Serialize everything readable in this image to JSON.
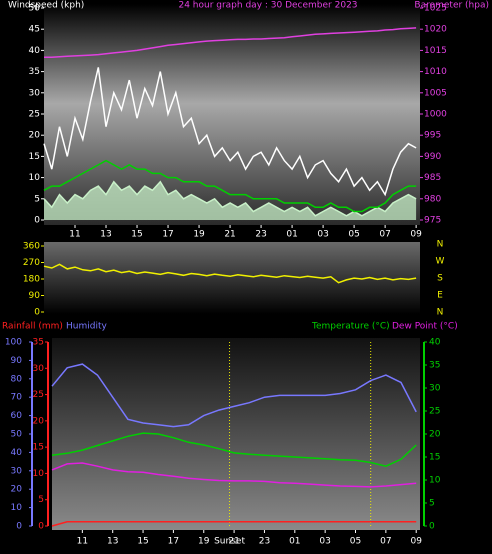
{
  "chart_data": [
    {
      "type": "line",
      "title": "24 hour graph day : 30 December 2023",
      "ylabel": "Windspeed (kph)",
      "y2label": "Barometer (hpa)",
      "x": [
        0,
        0.5,
        1,
        1.5,
        2,
        2.5,
        3,
        3.5,
        4,
        4.5,
        5,
        5.5,
        6,
        6.5,
        7,
        7.5,
        8,
        8.5,
        9,
        9.5,
        10,
        10.5,
        11,
        11.5,
        12,
        12.5,
        13,
        13.5,
        14,
        14.5,
        15,
        15.5,
        16,
        16.5,
        17,
        17.5,
        18,
        18.5,
        19,
        19.5,
        20,
        20.5,
        21,
        21.5,
        22,
        22.5,
        23,
        23.5,
        24
      ],
      "xlim": [
        0,
        24.25
      ],
      "xticks": [
        {
          "value": 2,
          "label": "11"
        },
        {
          "value": 4,
          "label": "13"
        },
        {
          "value": 6,
          "label": "15"
        },
        {
          "value": 8,
          "label": "17"
        },
        {
          "value": 10,
          "label": "19"
        },
        {
          "value": 12,
          "label": "21"
        },
        {
          "value": 14,
          "label": "23"
        },
        {
          "value": 16,
          "label": "01"
        },
        {
          "value": 18,
          "label": "03"
        },
        {
          "value": 20,
          "label": "05"
        },
        {
          "value": 22,
          "label": "07"
        },
        {
          "value": 24,
          "label": "09"
        }
      ],
      "ylim": [
        0,
        50
      ],
      "yticks": [
        0,
        5,
        10,
        15,
        20,
        25,
        30,
        35,
        40,
        45,
        50
      ],
      "y2lim": [
        975,
        1025
      ],
      "y2ticks": [
        975,
        980,
        985,
        990,
        995,
        1000,
        1005,
        1010,
        1015,
        1020,
        1025
      ],
      "series": [
        {
          "color": "#ffffff",
          "axis": "y",
          "values": [
            18,
            12,
            22,
            15,
            24,
            19,
            28,
            36,
            22,
            30,
            26,
            33,
            24,
            31,
            27,
            35,
            25,
            30,
            22,
            24,
            18,
            20,
            15,
            17,
            14,
            16,
            12,
            15,
            16,
            13,
            17,
            14,
            12,
            15,
            10,
            13,
            14,
            11,
            9,
            12,
            8,
            10,
            7,
            9,
            6,
            12,
            16,
            18,
            17
          ]
        },
        {
          "color": "#c8f0c8",
          "axis": "y",
          "area": true,
          "values": [
            5,
            3,
            6,
            4,
            6,
            5,
            7,
            8,
            6,
            9,
            7,
            8,
            6,
            8,
            7,
            9,
            6,
            7,
            5,
            6,
            5,
            4,
            5,
            3,
            4,
            3,
            4,
            2,
            3,
            4,
            3,
            2,
            3,
            2,
            3,
            1,
            2,
            3,
            2,
            1,
            2,
            1,
            2,
            3,
            2,
            4,
            5,
            6,
            5
          ]
        },
        {
          "color": "#00d000",
          "axis": "y",
          "values": [
            7,
            8,
            8,
            9,
            10,
            11,
            12,
            13,
            14,
            13,
            12,
            13,
            12,
            12,
            11,
            11,
            10,
            10,
            9,
            9,
            9,
            8,
            8,
            7,
            6,
            6,
            6,
            5,
            5,
            5,
            5,
            4,
            4,
            4,
            4,
            3,
            3,
            4,
            3,
            3,
            2,
            2,
            3,
            3,
            4,
            6,
            7,
            8,
            8
          ]
        },
        {
          "color": "#e040e0",
          "axis": "y2",
          "values": [
            1013.4,
            1013.4,
            1013.5,
            1013.6,
            1013.7,
            1013.8,
            1013.9,
            1014.0,
            1014.2,
            1014.4,
            1014.6,
            1014.8,
            1015.0,
            1015.3,
            1015.6,
            1015.9,
            1016.2,
            1016.4,
            1016.6,
            1016.8,
            1017.0,
            1017.2,
            1017.3,
            1017.4,
            1017.5,
            1017.6,
            1017.6,
            1017.7,
            1017.7,
            1017.8,
            1017.9,
            1018.0,
            1018.2,
            1018.4,
            1018.6,
            1018.8,
            1018.9,
            1019.0,
            1019.1,
            1019.2,
            1019.3,
            1019.4,
            1019.5,
            1019.6,
            1019.8,
            1019.9,
            1020.1,
            1020.2,
            1020.3
          ]
        }
      ]
    },
    {
      "type": "line",
      "x": [
        0,
        0.5,
        1,
        1.5,
        2,
        2.5,
        3,
        3.5,
        4,
        4.5,
        5,
        5.5,
        6,
        6.5,
        7,
        7.5,
        8,
        8.5,
        9,
        9.5,
        10,
        10.5,
        11,
        11.5,
        12,
        12.5,
        13,
        13.5,
        14,
        14.5,
        15,
        15.5,
        16,
        16.5,
        17,
        17.5,
        18,
        18.5,
        19,
        19.5,
        20,
        20.5,
        21,
        21.5,
        22,
        22.5,
        23,
        23.5,
        24
      ],
      "xlim": [
        0,
        24.25
      ],
      "ylim": [
        0,
        360
      ],
      "yticks": [
        0,
        90,
        180,
        270,
        360
      ],
      "direction_labels": [
        "N",
        "W",
        "S",
        "E",
        "N"
      ],
      "series": [
        {
          "color": "#f0f000",
          "axis": "y",
          "values": [
            250,
            240,
            260,
            235,
            245,
            230,
            225,
            235,
            220,
            228,
            215,
            222,
            210,
            218,
            212,
            205,
            215,
            208,
            200,
            210,
            205,
            198,
            207,
            200,
            195,
            203,
            198,
            192,
            200,
            195,
            190,
            198,
            193,
            188,
            195,
            190,
            185,
            192,
            160,
            175,
            185,
            180,
            188,
            178,
            185,
            175,
            182,
            178,
            185
          ]
        }
      ]
    },
    {
      "type": "line",
      "x": [
        0,
        1,
        2,
        3,
        4,
        5,
        6,
        7,
        8,
        9,
        10,
        11,
        12,
        13,
        14,
        15,
        16,
        17,
        18,
        19,
        20,
        21,
        22,
        23,
        24
      ],
      "xlim": [
        0,
        24.25
      ],
      "xticks": [
        {
          "value": 2,
          "label": "11"
        },
        {
          "value": 4,
          "label": "13"
        },
        {
          "value": 6,
          "label": "15"
        },
        {
          "value": 8,
          "label": "17"
        },
        {
          "value": 10,
          "label": "19"
        },
        {
          "value": 12,
          "label": "21"
        },
        {
          "value": 14,
          "label": "23"
        },
        {
          "value": 16,
          "label": "01"
        },
        {
          "value": 18,
          "label": "03"
        },
        {
          "value": 20,
          "label": "05"
        },
        {
          "value": 22,
          "label": "07"
        },
        {
          "value": 24,
          "label": "09"
        }
      ],
      "ylim": [
        0,
        35
      ],
      "yticks": [
        0,
        5,
        10,
        15,
        20,
        25,
        30,
        35
      ],
      "y2lim": [
        0,
        40
      ],
      "y2ticks": [
        0,
        5,
        10,
        15,
        20,
        25,
        30,
        35,
        40
      ],
      "y3lim": [
        0,
        100
      ],
      "y3ticks": [
        0,
        10,
        20,
        30,
        40,
        50,
        60,
        70,
        80,
        90,
        100
      ],
      "events": [
        {
          "x": 11.7,
          "label": "Sunset"
        },
        {
          "x": 21
        }
      ],
      "series": [
        {
          "name": "Rainfall (mm)",
          "color": "#ff2020",
          "axis": "y",
          "values": [
            0,
            0.8,
            0.8,
            0.8,
            0.8,
            0.8,
            0.8,
            0.8,
            0.8,
            0.8,
            0.8,
            0.8,
            0.8,
            0.8,
            0.8,
            0.8,
            0.8,
            0.8,
            0.8,
            0.8,
            0.8,
            0.8,
            0.8,
            0.8,
            0.8
          ]
        },
        {
          "name": "Humidity",
          "color": "#7878ff",
          "axis": "y3",
          "values": [
            76,
            86,
            88,
            82,
            70,
            58,
            56,
            55,
            54,
            55,
            60,
            63,
            65,
            67,
            70,
            71,
            71,
            71,
            71,
            72,
            74,
            79,
            82,
            78,
            62
          ]
        },
        {
          "name": "Temperature (°C)",
          "color": "#00d000",
          "axis": "y2",
          "values": [
            15.4,
            15.8,
            16.5,
            17.5,
            18.5,
            19.5,
            20.2,
            20.0,
            19.2,
            18.2,
            17.6,
            16.8,
            15.9,
            15.6,
            15.4,
            15.2,
            15.0,
            14.8,
            14.6,
            14.4,
            14.3,
            13.8,
            13.0,
            14.5,
            17.6
          ]
        },
        {
          "name": "Dew Point (°C)",
          "color": "#e020e0",
          "axis": "y2",
          "values": [
            12.2,
            13.5,
            13.7,
            13.0,
            12.2,
            11.8,
            11.7,
            11.2,
            10.8,
            10.4,
            10.1,
            9.9,
            9.8,
            9.8,
            9.7,
            9.4,
            9.3,
            9.1,
            8.9,
            8.7,
            8.6,
            8.5,
            8.7,
            9.0,
            9.3
          ]
        }
      ]
    }
  ]
}
